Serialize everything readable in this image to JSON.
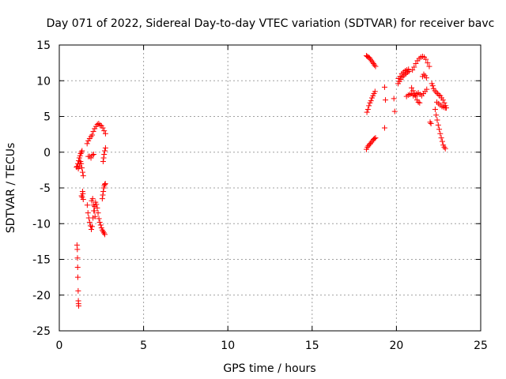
{
  "chart_data": {
    "type": "scatter",
    "title": "Day 071 of 2022, Sidereal Day-to-day VTEC variation (SDTVAR) for receiver bavc",
    "xlabel": "GPS time / hours",
    "ylabel": "SDTVAR / TECUs",
    "xlim": [
      0,
      25
    ],
    "ylim": [
      -25,
      15
    ],
    "xticks": [
      "0",
      "5",
      "10",
      "15",
      "20",
      "25"
    ],
    "yticks": [
      "15",
      "10",
      "5",
      "0",
      "-5",
      "-10",
      "-15",
      "-20",
      "-25"
    ],
    "grid": true,
    "marker": "+",
    "series": [
      {
        "name": "SDTVAR",
        "color": "#ff0000",
        "points": [
          [
            1.02,
            -2.1
          ],
          [
            1.06,
            -2.0
          ],
          [
            1.1,
            -1.6
          ],
          [
            1.15,
            -1.2
          ],
          [
            1.19,
            -0.8
          ],
          [
            1.23,
            -0.5
          ],
          [
            1.27,
            -0.2
          ],
          [
            1.31,
            0.0
          ],
          [
            1.35,
            0.2
          ],
          [
            1.13,
            -2.3
          ],
          [
            1.18,
            -2.0
          ],
          [
            1.22,
            -1.6
          ],
          [
            1.26,
            -1.3
          ],
          [
            1.3,
            -1.6
          ],
          [
            1.34,
            -2.2
          ],
          [
            1.38,
            -2.8
          ],
          [
            1.42,
            -3.3
          ],
          [
            1.38,
            -5.5
          ],
          [
            1.4,
            -5.8
          ],
          [
            1.36,
            -6.3
          ],
          [
            1.42,
            -6.6
          ],
          [
            1.32,
            -6.1
          ],
          [
            1.05,
            -13.0
          ],
          [
            1.07,
            -13.6
          ],
          [
            1.08,
            -14.8
          ],
          [
            1.09,
            -16.1
          ],
          [
            1.1,
            -17.5
          ],
          [
            1.12,
            -19.4
          ],
          [
            1.13,
            -20.8
          ],
          [
            1.14,
            -21.2
          ],
          [
            1.15,
            -21.5
          ],
          [
            1.65,
            1.2
          ],
          [
            1.72,
            1.6
          ],
          [
            1.8,
            1.9
          ],
          [
            1.88,
            2.2
          ],
          [
            1.95,
            2.4
          ],
          [
            2.02,
            2.9
          ],
          [
            2.1,
            3.3
          ],
          [
            2.18,
            3.6
          ],
          [
            2.26,
            3.9
          ],
          [
            2.34,
            4.0
          ],
          [
            2.42,
            3.8
          ],
          [
            2.5,
            3.7
          ],
          [
            2.58,
            3.4
          ],
          [
            2.66,
            3.0
          ],
          [
            2.74,
            2.6
          ],
          [
            1.72,
            -0.6
          ],
          [
            1.8,
            -0.6
          ],
          [
            1.88,
            -0.8
          ],
          [
            1.96,
            -0.4
          ],
          [
            2.04,
            -0.3
          ],
          [
            1.66,
            -7.4
          ],
          [
            1.7,
            -8.5
          ],
          [
            1.75,
            -9.2
          ],
          [
            1.8,
            -9.8
          ],
          [
            1.85,
            -10.3
          ],
          [
            1.9,
            -10.8
          ],
          [
            1.95,
            -10.4
          ],
          [
            2.0,
            -9.2
          ],
          [
            2.05,
            -8.2
          ],
          [
            2.1,
            -7.6
          ],
          [
            2.15,
            -7.0
          ],
          [
            2.2,
            -7.3
          ],
          [
            2.25,
            -7.8
          ],
          [
            2.3,
            -8.5
          ],
          [
            2.35,
            -9.3
          ],
          [
            2.4,
            -9.8
          ],
          [
            2.45,
            -10.2
          ],
          [
            2.5,
            -10.6
          ],
          [
            2.55,
            -10.9
          ],
          [
            2.6,
            -11.1
          ],
          [
            2.65,
            -11.3
          ],
          [
            2.7,
            -11.5
          ],
          [
            1.92,
            -6.8
          ],
          [
            1.98,
            -6.5
          ],
          [
            2.02,
            -7.4
          ],
          [
            2.08,
            -8.2
          ],
          [
            2.12,
            -9.0
          ],
          [
            2.55,
            -6.5
          ],
          [
            2.58,
            -6.0
          ],
          [
            2.61,
            -5.5
          ],
          [
            2.64,
            -5.0
          ],
          [
            2.67,
            -4.7
          ],
          [
            2.7,
            -4.5
          ],
          [
            2.73,
            -4.4
          ],
          [
            2.6,
            -1.3
          ],
          [
            2.63,
            -0.8
          ],
          [
            2.66,
            -0.3
          ],
          [
            2.7,
            0.2
          ],
          [
            2.74,
            0.6
          ],
          [
            18.22,
            13.5
          ],
          [
            18.28,
            13.4
          ],
          [
            18.34,
            13.3
          ],
          [
            18.4,
            13.2
          ],
          [
            18.46,
            13.0
          ],
          [
            18.52,
            12.8
          ],
          [
            18.58,
            12.6
          ],
          [
            18.64,
            12.4
          ],
          [
            18.7,
            12.2
          ],
          [
            18.76,
            12.0
          ],
          [
            18.25,
            5.6
          ],
          [
            18.31,
            6.0
          ],
          [
            18.37,
            6.5
          ],
          [
            18.43,
            6.9
          ],
          [
            18.49,
            7.2
          ],
          [
            18.55,
            7.6
          ],
          [
            18.61,
            7.9
          ],
          [
            18.67,
            8.2
          ],
          [
            18.73,
            8.5
          ],
          [
            18.22,
            0.4
          ],
          [
            18.28,
            0.7
          ],
          [
            18.34,
            0.9
          ],
          [
            18.4,
            1.1
          ],
          [
            18.46,
            1.2
          ],
          [
            18.52,
            1.4
          ],
          [
            18.58,
            1.6
          ],
          [
            18.64,
            1.8
          ],
          [
            18.7,
            1.9
          ],
          [
            18.76,
            2.0
          ],
          [
            19.3,
            9.1
          ],
          [
            19.35,
            7.3
          ],
          [
            19.3,
            3.4
          ],
          [
            19.85,
            7.5
          ],
          [
            19.9,
            5.7
          ],
          [
            20.1,
            9.6
          ],
          [
            20.18,
            9.9
          ],
          [
            20.26,
            10.2
          ],
          [
            20.34,
            10.5
          ],
          [
            20.42,
            10.7
          ],
          [
            20.5,
            10.9
          ],
          [
            20.58,
            11.0
          ],
          [
            20.66,
            11.2
          ],
          [
            20.74,
            11.3
          ],
          [
            20.12,
            10.3
          ],
          [
            20.22,
            10.6
          ],
          [
            20.32,
            11.0
          ],
          [
            20.42,
            11.2
          ],
          [
            20.52,
            11.4
          ],
          [
            20.62,
            11.5
          ],
          [
            20.72,
            11.6
          ],
          [
            20.6,
            7.8
          ],
          [
            20.7,
            8.0
          ],
          [
            20.8,
            8.1
          ],
          [
            20.9,
            8.2
          ],
          [
            21.0,
            7.9
          ],
          [
            20.9,
            9.0
          ],
          [
            20.98,
            8.6
          ],
          [
            21.06,
            8.2
          ],
          [
            21.14,
            7.8
          ],
          [
            21.22,
            7.3
          ],
          [
            21.3,
            7.0
          ],
          [
            21.38,
            6.9
          ],
          [
            20.95,
            11.5
          ],
          [
            21.05,
            11.9
          ],
          [
            21.15,
            12.4
          ],
          [
            21.25,
            12.8
          ],
          [
            21.35,
            13.1
          ],
          [
            21.45,
            13.3
          ],
          [
            21.55,
            13.4
          ],
          [
            21.65,
            13.3
          ],
          [
            21.75,
            13.0
          ],
          [
            21.85,
            12.5
          ],
          [
            21.95,
            12.0
          ],
          [
            21.1,
            8.0
          ],
          [
            21.2,
            8.2
          ],
          [
            21.3,
            8.3
          ],
          [
            21.4,
            8.1
          ],
          [
            21.5,
            7.9
          ],
          [
            21.6,
            8.2
          ],
          [
            21.7,
            8.5
          ],
          [
            21.8,
            8.8
          ],
          [
            21.55,
            10.6
          ],
          [
            21.62,
            10.9
          ],
          [
            21.7,
            10.7
          ],
          [
            21.78,
            10.4
          ],
          [
            22.0,
            4.2
          ],
          [
            22.05,
            4.0
          ],
          [
            22.1,
            9.6
          ],
          [
            22.15,
            9.3
          ],
          [
            22.2,
            8.9
          ],
          [
            22.28,
            8.6
          ],
          [
            22.36,
            8.4
          ],
          [
            22.44,
            8.2
          ],
          [
            22.52,
            8.0
          ],
          [
            22.6,
            7.9
          ],
          [
            22.68,
            7.6
          ],
          [
            22.76,
            7.3
          ],
          [
            22.84,
            6.9
          ],
          [
            22.92,
            6.5
          ],
          [
            22.96,
            6.2
          ],
          [
            22.3,
            6.0
          ],
          [
            22.36,
            5.2
          ],
          [
            22.42,
            4.5
          ],
          [
            22.48,
            3.8
          ],
          [
            22.54,
            3.2
          ],
          [
            22.6,
            2.6
          ],
          [
            22.66,
            2.0
          ],
          [
            22.72,
            1.5
          ],
          [
            22.78,
            1.0
          ],
          [
            22.84,
            0.7
          ],
          [
            22.9,
            0.5
          ],
          [
            22.4,
            7.0
          ],
          [
            22.5,
            6.8
          ],
          [
            22.6,
            6.6
          ],
          [
            22.7,
            6.4
          ],
          [
            22.8,
            6.3
          ],
          [
            22.9,
            6.2
          ]
        ]
      }
    ]
  }
}
